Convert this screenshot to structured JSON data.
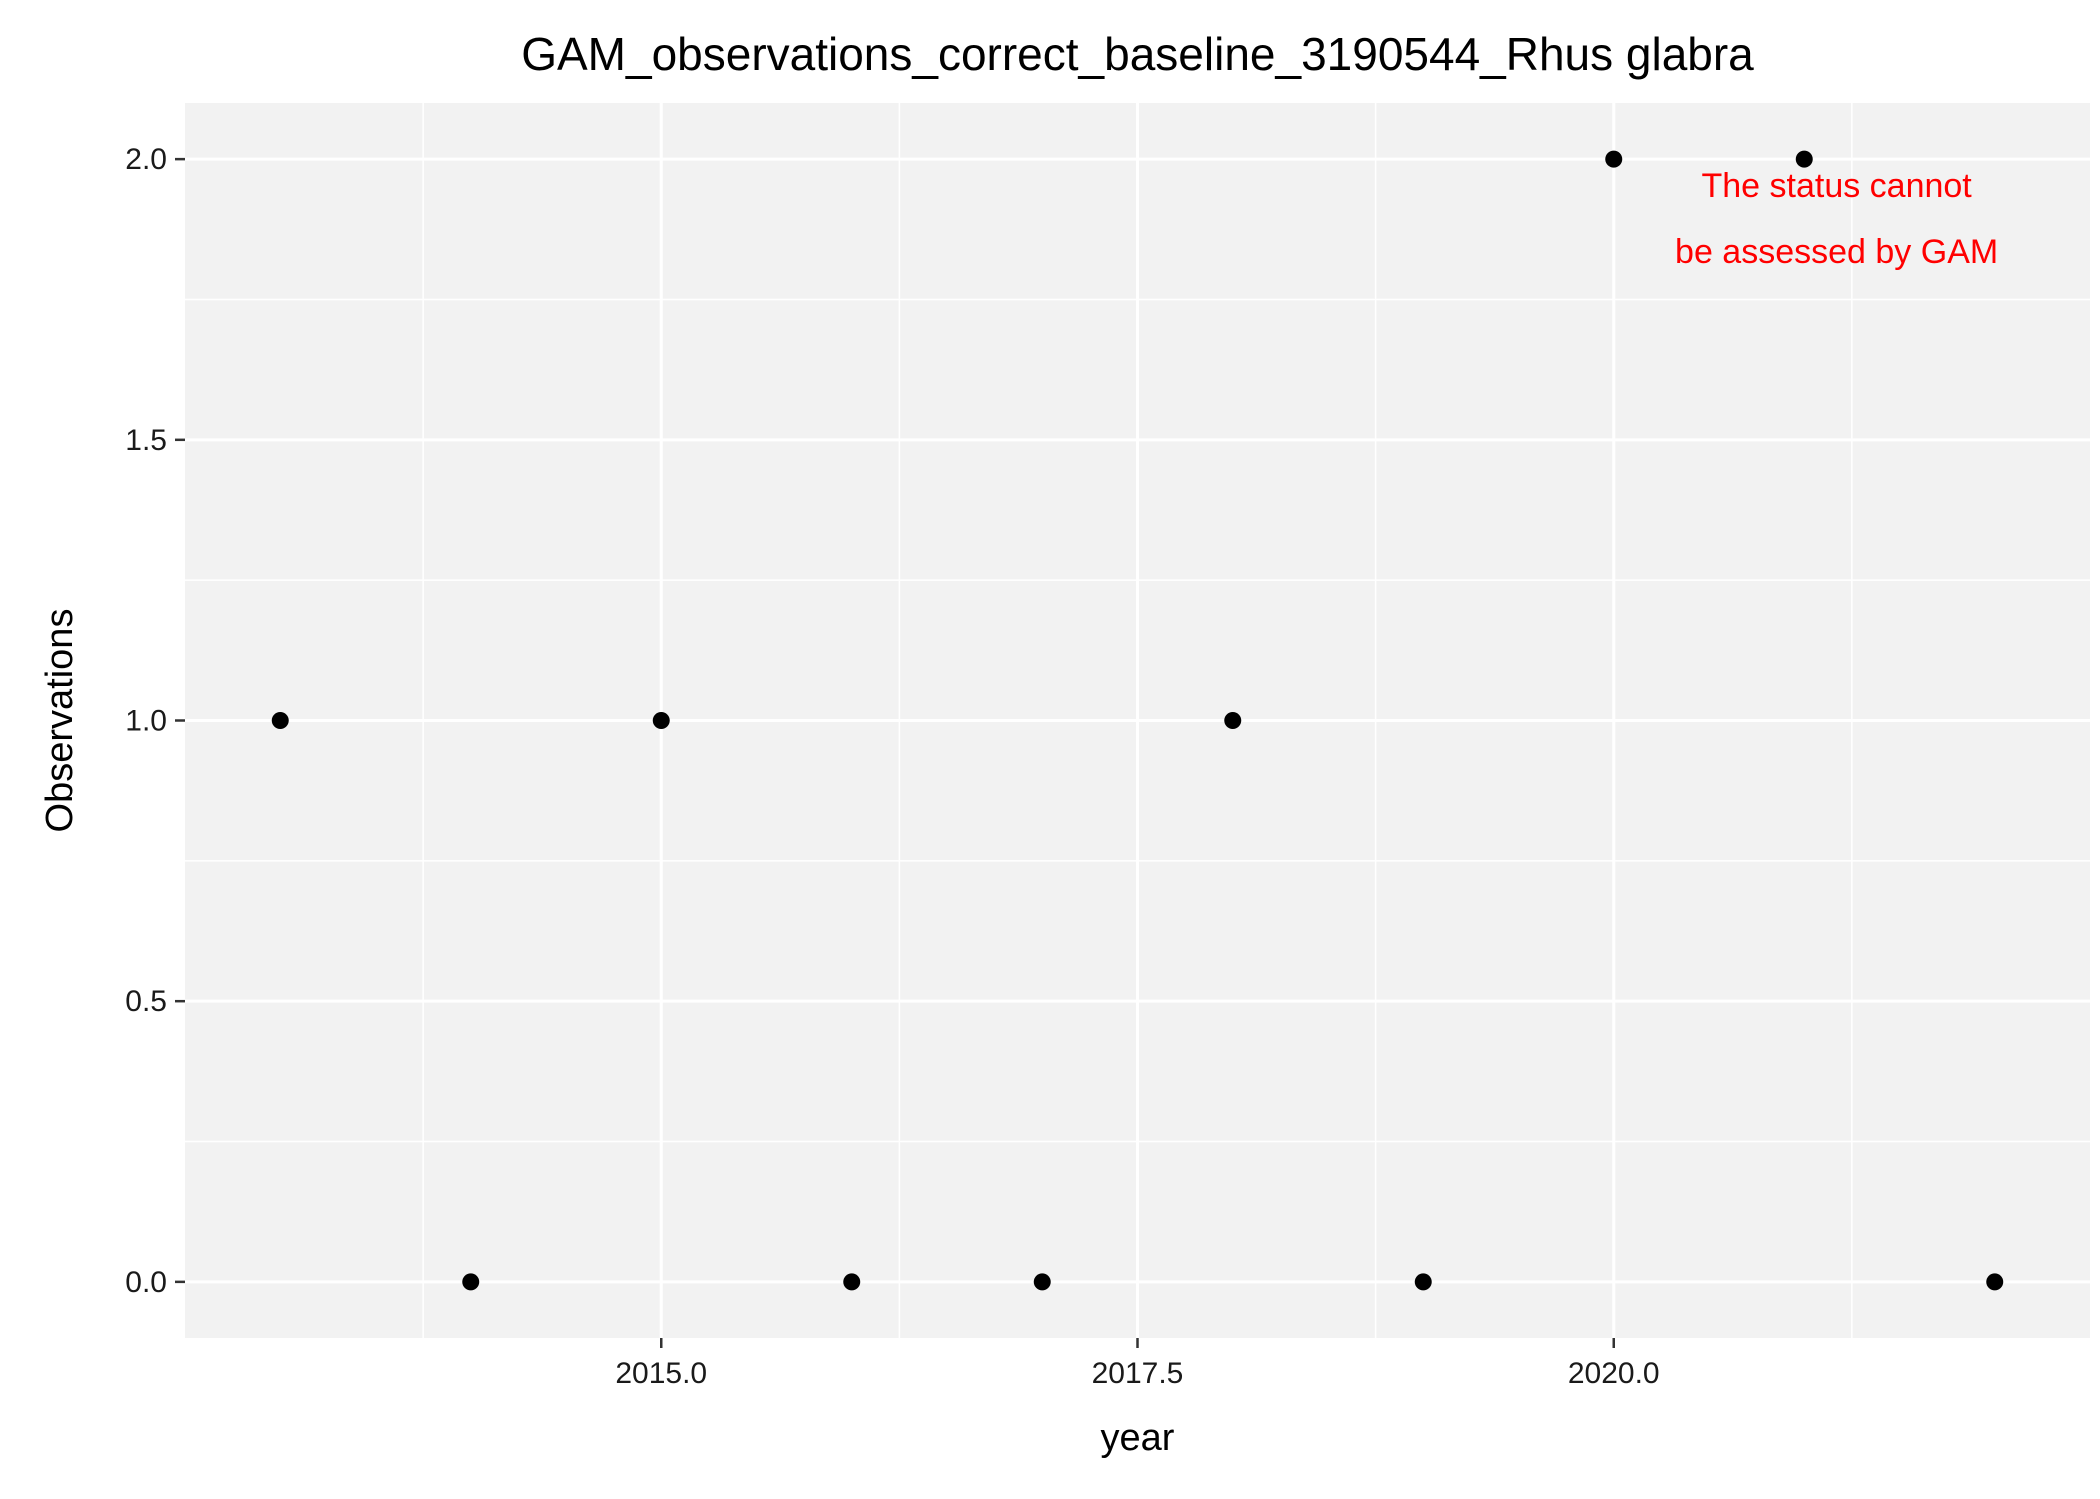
{
  "chart_data": {
    "type": "scatter",
    "title": "GAM_observations_correct_baseline_3190544_Rhus glabra",
    "xlabel": "year",
    "ylabel": "Observations",
    "xlim": [
      2012.5,
      2022.5
    ],
    "ylim": [
      -0.1,
      2.1
    ],
    "x_ticks": [
      2015.0,
      2017.5,
      2020.0
    ],
    "x_tick_labels": [
      "2015.0",
      "2017.5",
      "2020.0"
    ],
    "y_ticks": [
      0.0,
      0.5,
      1.0,
      1.5,
      2.0
    ],
    "y_tick_labels": [
      "0.0",
      "0.5",
      "1.0",
      "1.5",
      "2.0"
    ],
    "grid": true,
    "points": [
      {
        "x": 2013,
        "y": 1
      },
      {
        "x": 2014,
        "y": 0
      },
      {
        "x": 2015,
        "y": 1
      },
      {
        "x": 2016,
        "y": 0
      },
      {
        "x": 2017,
        "y": 0
      },
      {
        "x": 2018,
        "y": 1
      },
      {
        "x": 2019,
        "y": 0
      },
      {
        "x": 2020,
        "y": 2
      },
      {
        "x": 2021,
        "y": 2
      },
      {
        "x": 2022,
        "y": 0
      }
    ],
    "annotation": {
      "lines": [
        "The status cannot",
        "be assessed by GAM"
      ],
      "color": "#ff0000"
    },
    "colors": {
      "panel": "#f2f2f2",
      "grid": "#ffffff",
      "points": "#000000"
    }
  }
}
